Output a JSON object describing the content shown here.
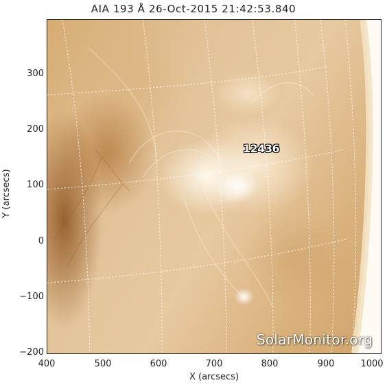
{
  "title": "AIA 193 Å 26-Oct-2015 21:42:53.840",
  "region_label": "12436",
  "watermark": "SolarMonitor.org",
  "x_axis": {
    "label": "X (arcsecs)",
    "ticks": [
      "400",
      "500",
      "600",
      "700",
      "800",
      "900",
      "1000"
    ]
  },
  "y_axis": {
    "label": "Y (arcsecs)",
    "ticks": [
      "300",
      "200",
      "100",
      "0",
      "−100",
      "−200"
    ]
  },
  "colors": {
    "image_tint": "#d9b07b",
    "grid": "#ffffff",
    "space": "#ffffff"
  }
}
